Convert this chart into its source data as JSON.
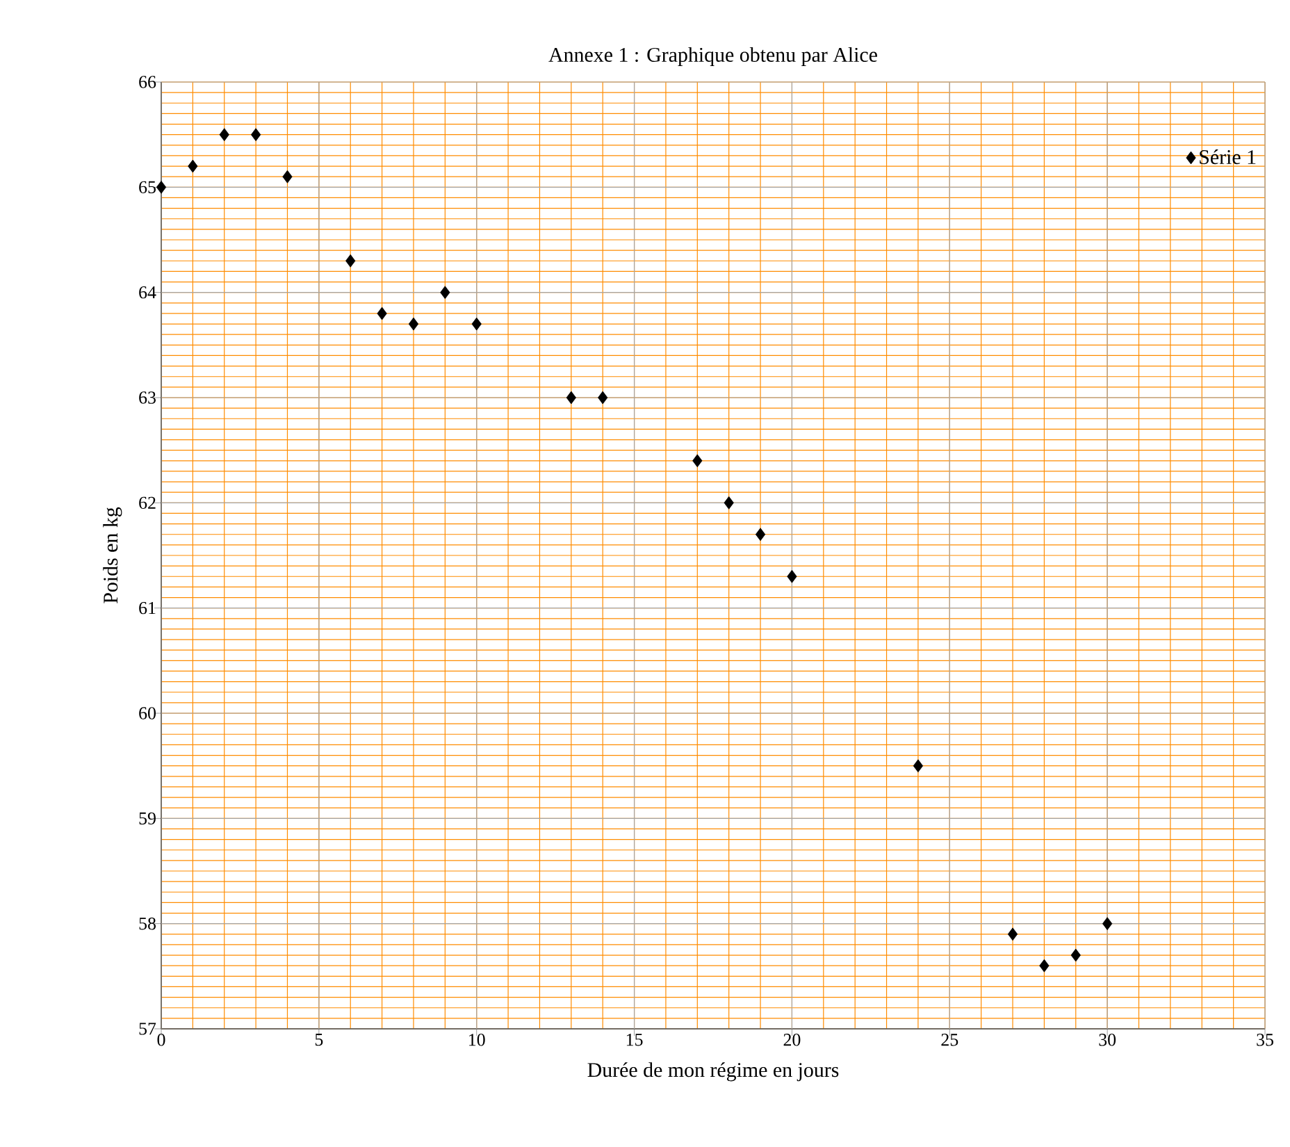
{
  "chart_data": {
    "type": "scatter",
    "title": "Annexe 1 : Graphique obtenu par Alice",
    "xlabel": "Durée de mon régime en jours",
    "ylabel": "Poids en kg",
    "xlim": [
      0,
      35
    ],
    "xticks": [
      0,
      {
        "value": 1,
        "label": null
      },
      {
        "value": 2,
        "label": null
      },
      {
        "value": 3,
        "label": null
      },
      {
        "value": 4,
        "label": null
      },
      5,
      {
        "value": 6,
        "label": null
      },
      {
        "value": 7,
        "label": null
      },
      {
        "value": 8,
        "label": null
      },
      {
        "value": 9,
        "label": null
      },
      10,
      {
        "value": 11,
        "label": null
      },
      {
        "value": 12,
        "label": null
      },
      {
        "value": 13,
        "label": null
      },
      {
        "value": 14,
        "label": null
      },
      15,
      {
        "value": 16,
        "label": null
      },
      {
        "value": 17,
        "label": null
      },
      {
        "value": 18,
        "label": null
      },
      {
        "value": 19,
        "label": null
      },
      20,
      {
        "value": 21,
        "label": null
      },
      {
        "value": 22,
        "label": null
      },
      {
        "value": 23,
        "label": null
      },
      {
        "value": 24,
        "label": null
      },
      25,
      {
        "value": 26,
        "label": null
      },
      {
        "value": 27,
        "label": null
      },
      {
        "value": 28,
        "label": null
      },
      {
        "value": 29,
        "label": null
      },
      30,
      {
        "value": 31,
        "label": null
      },
      {
        "value": 32,
        "label": null
      },
      {
        "value": 33,
        "label": null
      },
      {
        "value": 34,
        "label": null
      },
      35
    ],
    "ylim": [
      57,
      66
    ],
    "yticks": [
      57,
      {
        "value": 57.1,
        "label": null
      },
      {
        "value": 57.2,
        "label": null
      },
      {
        "value": 57.3,
        "label": null
      },
      {
        "value": 57.4,
        "label": null
      },
      {
        "value": 57.5,
        "label": null
      },
      {
        "value": 57.6,
        "label": null
      },
      {
        "value": 57.7,
        "label": null
      },
      {
        "value": 57.8,
        "label": null
      },
      {
        "value": 57.9,
        "label": null
      },
      58,
      {
        "value": 58.1,
        "label": null
      },
      {
        "value": 58.2,
        "label": null
      },
      {
        "value": 58.3,
        "label": null
      },
      {
        "value": 58.4,
        "label": null
      },
      {
        "value": 58.5,
        "label": null
      },
      {
        "value": 58.6,
        "label": null
      },
      {
        "value": 58.7,
        "label": null
      },
      {
        "value": 58.8,
        "label": null
      },
      {
        "value": 58.9,
        "label": null
      },
      59,
      {
        "value": 59.1,
        "label": null
      },
      {
        "value": 59.2,
        "label": null
      },
      {
        "value": 59.3,
        "label": null
      },
      {
        "value": 59.4,
        "label": null
      },
      {
        "value": 59.5,
        "label": null
      },
      {
        "value": 59.6,
        "label": null
      },
      {
        "value": 59.7,
        "label": null
      },
      {
        "value": 59.8,
        "label": null
      },
      {
        "value": 59.9,
        "label": null
      },
      60,
      {
        "value": 60.1,
        "label": null
      },
      {
        "value": 60.2,
        "label": null
      },
      {
        "value": 60.3,
        "label": null
      },
      {
        "value": 60.4,
        "label": null
      },
      {
        "value": 60.5,
        "label": null
      },
      {
        "value": 60.6,
        "label": null
      },
      {
        "value": 60.7,
        "label": null
      },
      {
        "value": 60.8,
        "label": null
      },
      {
        "value": 60.9,
        "label": null
      },
      61,
      {
        "value": 61.1,
        "label": null
      },
      {
        "value": 61.2,
        "label": null
      },
      {
        "value": 61.3,
        "label": null
      },
      {
        "value": 61.4,
        "label": null
      },
      {
        "value": 61.5,
        "label": null
      },
      {
        "value": 61.6,
        "label": null
      },
      {
        "value": 61.7,
        "label": null
      },
      {
        "value": 61.8,
        "label": null
      },
      {
        "value": 61.9,
        "label": null
      },
      62,
      {
        "value": 62.1,
        "label": null
      },
      {
        "value": 62.2,
        "label": null
      },
      {
        "value": 62.3,
        "label": null
      },
      {
        "value": 62.4,
        "label": null
      },
      {
        "value": 62.5,
        "label": null
      },
      {
        "value": 62.6,
        "label": null
      },
      {
        "value": 62.7,
        "label": null
      },
      {
        "value": 62.8,
        "label": null
      },
      {
        "value": 62.9,
        "label": null
      },
      63,
      {
        "value": 63.1,
        "label": null
      },
      {
        "value": 63.2,
        "label": null
      },
      {
        "value": 63.3,
        "label": null
      },
      {
        "value": 63.4,
        "label": null
      },
      {
        "value": 63.5,
        "label": null
      },
      {
        "value": 63.6,
        "label": null
      },
      {
        "value": 63.7,
        "label": null
      },
      {
        "value": 63.8,
        "label": null
      },
      {
        "value": 63.9,
        "label": null
      },
      64,
      {
        "value": 64.1,
        "label": null
      },
      {
        "value": 64.2,
        "label": null
      },
      {
        "value": 64.3,
        "label": null
      },
      {
        "value": 64.4,
        "label": null
      },
      {
        "value": 64.5,
        "label": null
      },
      {
        "value": 64.6,
        "label": null
      },
      {
        "value": 64.7,
        "label": null
      },
      {
        "value": 64.8,
        "label": null
      },
      {
        "value": 64.9,
        "label": null
      },
      65,
      {
        "value": 65.1,
        "label": null
      },
      {
        "value": 65.2,
        "label": null
      },
      {
        "value": 65.3,
        "label": null
      },
      {
        "value": 65.4,
        "label": null
      },
      {
        "value": 65.5,
        "label": null
      },
      {
        "value": 65.6,
        "label": null
      },
      {
        "value": 65.7,
        "label": null
      },
      {
        "value": 65.8,
        "label": null
      },
      {
        "value": 65.9,
        "label": null
      },
      66
    ],
    "grid": true,
    "legend": "top right",
    "marker": "diamond",
    "series": [
      {
        "name": "Série 1",
        "color": "#000000",
        "x": [
          0,
          1,
          2,
          3,
          4,
          6,
          7,
          8,
          9,
          10,
          13,
          14,
          17,
          18,
          19,
          20,
          24,
          27,
          28,
          29,
          30
        ],
        "values": [
          65,
          65.2,
          65.5,
          65.5,
          65.1,
          64.3,
          63.8,
          63.7,
          64,
          63.7,
          63,
          63,
          62.4,
          62,
          61.7,
          61.3,
          59.5,
          57.9,
          57.6,
          57.7,
          58
        ]
      }
    ]
  }
}
